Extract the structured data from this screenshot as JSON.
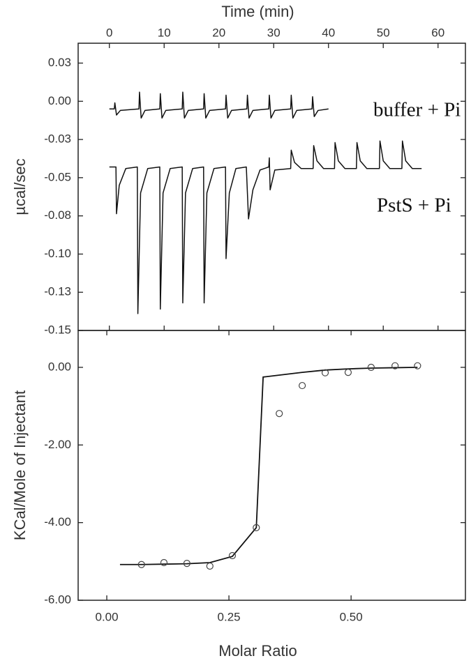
{
  "chart_data": [
    {
      "type": "line",
      "xlabel": "Time (min)",
      "ylabel": "µcal/sec",
      "xlim": [
        -5.7,
        65
      ],
      "xticks": [
        0,
        10,
        20,
        30,
        40,
        50,
        60
      ],
      "ylim": [
        -0.15,
        0.038
      ],
      "yticks": [
        {
          "value": 0.025,
          "label": "0.03"
        },
        {
          "value": 0,
          "label": "0.00"
        },
        {
          "value": -0.025,
          "label": "-0.03"
        },
        {
          "value": -0.05,
          "label": "-0.05"
        },
        {
          "value": -0.075,
          "label": "-0.08"
        },
        {
          "value": -0.1,
          "label": "-0.10"
        },
        {
          "value": -0.125,
          "label": "-0.13"
        },
        {
          "value": -0.15,
          "label": "-0.15"
        }
      ],
      "annotations": [
        "buffer + Pi",
        "PstS + Pi"
      ],
      "series": [
        {
          "color": "#111111",
          "x": [
            0,
            0.9,
            1.0,
            1.3,
            2.0,
            5.4,
            5.5,
            5.8,
            6.5,
            9.2,
            9.3,
            9.6,
            10.3,
            13.3,
            13.4,
            13.7,
            14.4,
            17.2,
            17.3,
            17.6,
            18.3,
            21.2,
            21.3,
            21.6,
            22.3,
            25.1,
            25.2,
            25.5,
            26.2,
            29.1,
            29.2,
            29.5,
            30.2,
            33.1,
            33.2,
            33.5,
            34.2,
            37.0,
            37.1,
            37.4,
            38.1,
            40
          ],
          "values": [
            -0.005,
            -0.005,
            -0.001,
            -0.009,
            -0.006,
            -0.005,
            0.006,
            -0.011,
            -0.006,
            -0.005,
            0.005,
            -0.011,
            -0.006,
            -0.005,
            0.006,
            -0.011,
            -0.006,
            -0.005,
            0.005,
            -0.011,
            -0.006,
            -0.005,
            0.004,
            -0.011,
            -0.006,
            -0.005,
            0.004,
            -0.011,
            -0.006,
            -0.005,
            0.004,
            -0.011,
            -0.006,
            -0.005,
            0.004,
            -0.011,
            -0.006,
            -0.005,
            0.003,
            -0.01,
            -0.006,
            -0.005
          ]
        },
        {
          "color": "#111111",
          "x": [
            0,
            1.2,
            1.3,
            1.8,
            3.0,
            5.1,
            5.2,
            5.7,
            7.0,
            9.2,
            9.3,
            9.8,
            11.1,
            13.3,
            13.4,
            13.9,
            15.2,
            17.2,
            17.3,
            17.8,
            19.1,
            21.2,
            21.3,
            21.9,
            23.1,
            25.0,
            25.4,
            26.2,
            27.5,
            29.1,
            29.2,
            29.35,
            30.2,
            33.1,
            33.2,
            33.8,
            35.0,
            37.2,
            37.3,
            37.9,
            39.1,
            41.1,
            41.2,
            41.8,
            43.0,
            45.1,
            45.2,
            45.8,
            47.0,
            49.3,
            49.4,
            50.0,
            51.2,
            53.4,
            53.5,
            54.1,
            55.3,
            57
          ],
          "values": [
            -0.043,
            -0.043,
            -0.0736,
            -0.055,
            -0.044,
            -0.043,
            -0.139,
            -0.06,
            -0.044,
            -0.043,
            -0.136,
            -0.06,
            -0.044,
            -0.043,
            -0.132,
            -0.06,
            -0.044,
            -0.043,
            -0.132,
            -0.06,
            -0.044,
            -0.043,
            -0.103,
            -0.06,
            -0.044,
            -0.043,
            -0.077,
            -0.058,
            -0.045,
            -0.043,
            -0.037,
            -0.058,
            -0.045,
            -0.044,
            -0.032,
            -0.04,
            -0.044,
            -0.044,
            -0.029,
            -0.039,
            -0.044,
            -0.044,
            -0.027,
            -0.039,
            -0.044,
            -0.044,
            -0.027,
            -0.039,
            -0.044,
            -0.044,
            -0.026,
            -0.039,
            -0.044,
            -0.044,
            -0.026,
            -0.039,
            -0.044,
            -0.044
          ]
        }
      ]
    },
    {
      "type": "scatter",
      "xlabel": "Molar Ratio",
      "ylabel": "KCal/Mole of Injectant",
      "xlim": [
        -0.0586,
        0.734
      ],
      "xticks": [
        {
          "value": 0,
          "label": "0.00"
        },
        {
          "value": 0.25,
          "label": "0.25"
        },
        {
          "value": 0.5,
          "label": "0.50"
        }
      ],
      "ylim": [
        -6,
        0.95
      ],
      "yticks": [
        {
          "value": 0,
          "label": "0.00"
        },
        {
          "value": -2,
          "label": "-2.00"
        },
        {
          "value": -4,
          "label": "-4.00"
        },
        {
          "value": -6,
          "label": "-6.00"
        }
      ],
      "x": [
        0.071,
        0.117,
        0.164,
        0.211,
        0.257,
        0.306,
        0.353,
        0.4,
        0.447,
        0.494,
        0.541,
        0.59,
        0.636
      ],
      "values": [
        -5.08,
        -5.03,
        -5.05,
        -5.12,
        -4.85,
        -4.13,
        -1.19,
        -0.47,
        -0.14,
        -0.13,
        0.0,
        0.04,
        0.04
      ],
      "fit": {
        "x": [
          0.027,
          0.071,
          0.117,
          0.164,
          0.211,
          0.257,
          0.306,
          0.32,
          0.4,
          0.447,
          0.494,
          0.541,
          0.59,
          0.636
        ],
        "values": [
          -5.08,
          -5.08,
          -5.07,
          -5.06,
          -5.03,
          -4.87,
          -4.13,
          -0.25,
          -0.13,
          -0.07,
          -0.04,
          -0.02,
          -0.01,
          0.0
        ]
      }
    }
  ]
}
